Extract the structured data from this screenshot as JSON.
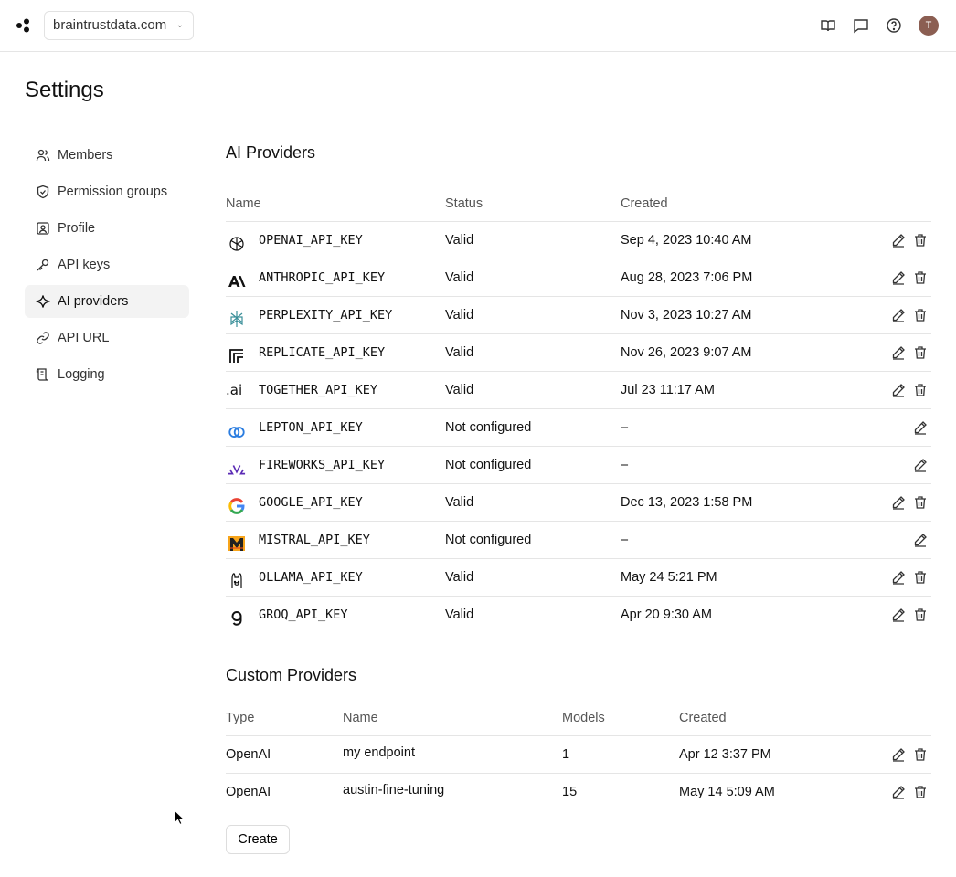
{
  "header": {
    "org": "braintrustdata.com",
    "avatar_initial": "T"
  },
  "page_title": "Settings",
  "sidebar": {
    "items": [
      {
        "label": "Members",
        "icon": "users-icon"
      },
      {
        "label": "Permission groups",
        "icon": "shield-icon"
      },
      {
        "label": "Profile",
        "icon": "profile-icon"
      },
      {
        "label": "API keys",
        "icon": "key-icon"
      },
      {
        "label": "AI providers",
        "icon": "sparkle-icon",
        "active": true
      },
      {
        "label": "API URL",
        "icon": "link-icon"
      },
      {
        "label": "Logging",
        "icon": "scroll-icon"
      }
    ]
  },
  "ai_providers": {
    "title": "AI Providers",
    "columns": [
      "Name",
      "Status",
      "Created"
    ],
    "rows": [
      {
        "name": "OPENAI_API_KEY",
        "status": "Valid",
        "created": "Sep 4, 2023 10:40 AM",
        "icon": "openai-icon"
      },
      {
        "name": "ANTHROPIC_API_KEY",
        "status": "Valid",
        "created": "Aug 28, 2023 7:06 PM",
        "icon": "anthropic-icon"
      },
      {
        "name": "PERPLEXITY_API_KEY",
        "status": "Valid",
        "created": "Nov 3, 2023 10:27 AM",
        "icon": "perplexity-icon"
      },
      {
        "name": "REPLICATE_API_KEY",
        "status": "Valid",
        "created": "Nov 26, 2023 9:07 AM",
        "icon": "replicate-icon"
      },
      {
        "name": "TOGETHER_API_KEY",
        "status": "Valid",
        "created": "Jul 23 11:17 AM",
        "icon": "together-icon"
      },
      {
        "name": "LEPTON_API_KEY",
        "status": "Not configured",
        "created": "–",
        "icon": "lepton-icon"
      },
      {
        "name": "FIREWORKS_API_KEY",
        "status": "Not configured",
        "created": "–",
        "icon": "fireworks-icon"
      },
      {
        "name": "GOOGLE_API_KEY",
        "status": "Valid",
        "created": "Dec 13, 2023 1:58 PM",
        "icon": "google-icon"
      },
      {
        "name": "MISTRAL_API_KEY",
        "status": "Not configured",
        "created": "–",
        "icon": "mistral-icon"
      },
      {
        "name": "OLLAMA_API_KEY",
        "status": "Valid",
        "created": "May 24 5:21 PM",
        "icon": "ollama-icon"
      },
      {
        "name": "GROQ_API_KEY",
        "status": "Valid",
        "created": "Apr 20 9:30 AM",
        "icon": "groq-icon"
      }
    ]
  },
  "custom_providers": {
    "title": "Custom Providers",
    "columns": [
      "Type",
      "Name",
      "Models",
      "Created"
    ],
    "rows": [
      {
        "type": "OpenAI",
        "name": "my endpoint",
        "models": "1",
        "created": "Apr 12 3:37 PM"
      },
      {
        "type": "OpenAI",
        "name": "austin-fine-tuning",
        "models": "15",
        "created": "May 14 5:09 AM"
      }
    ],
    "create_label": "Create"
  },
  "together_text": ".ai"
}
